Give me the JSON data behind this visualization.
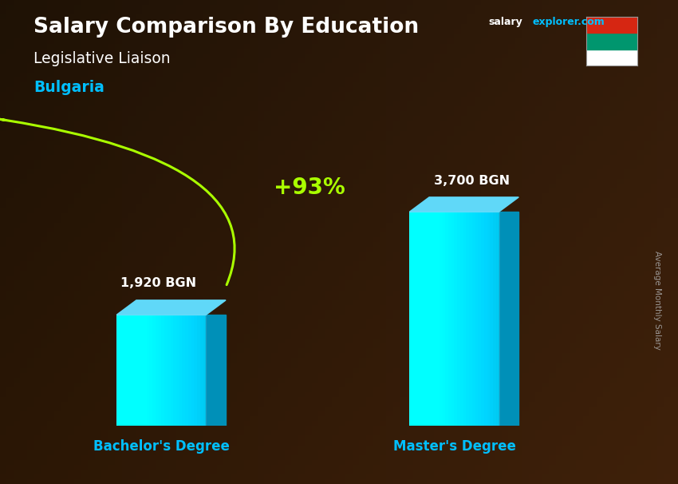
{
  "title": "Salary Comparison By Education",
  "subtitle": "Legislative Liaison",
  "country": "Bulgaria",
  "categories": [
    "Bachelor's Degree",
    "Master's Degree"
  ],
  "values": [
    1920,
    3700
  ],
  "value_labels": [
    "1,920 BGN",
    "3,700 BGN"
  ],
  "pct_change": "+93%",
  "bar_color_main": "#00C8F0",
  "bar_color_light": "#80E8FF",
  "bar_color_dark": "#0090B8",
  "bar_color_top": "#60D8F8",
  "bg_color": "#1a1008",
  "title_color": "#ffffff",
  "subtitle_color": "#ffffff",
  "country_color": "#00BFFF",
  "label_color": "#ffffff",
  "pct_color": "#AAFF00",
  "arrow_color": "#AAFF00",
  "xlabel_color": "#00BFFF",
  "ylabel_text": "Average Monthly Salary",
  "ylabel_color": "#aaaaaa",
  "ylim": [
    0,
    4600
  ],
  "flag_colors": [
    "#ffffff",
    "#00966E",
    "#D62612"
  ],
  "salary_color": "#ffffff",
  "explorer_color": "#00BFFF"
}
